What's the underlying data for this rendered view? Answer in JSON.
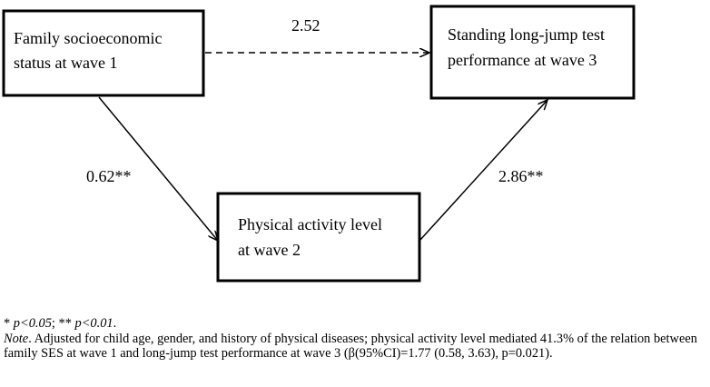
{
  "nodes": {
    "ses": {
      "lines": [
        "Family socioeconomic",
        "status at wave 1"
      ]
    },
    "jump": {
      "lines": [
        "Standing long-jump test",
        "performance at wave 3"
      ]
    },
    "activity": {
      "lines": [
        "Physical activity level",
        "at wave 2"
      ]
    }
  },
  "paths": {
    "direct": {
      "coef": "2.52",
      "style": "dashed"
    },
    "a": {
      "coef": "0.62**",
      "style": "solid"
    },
    "b": {
      "coef": "2.86**",
      "style": "solid"
    }
  },
  "footnote": {
    "sig1_star": "* ",
    "sig1_p": "p<0.05",
    "sep": "; ",
    "sig2_star": "** ",
    "sig2_p": "p<0.01",
    "end": ".",
    "note_label": "Note",
    "note_text": ". Adjusted for child age, gender, and history of physical diseases; physical activity level mediated 41.3% of the relation between family SES at wave 1 and long-jump test performance at wave 3 (β(95%CI)=1.77 (0.58, 3.63), p=0.021)."
  }
}
